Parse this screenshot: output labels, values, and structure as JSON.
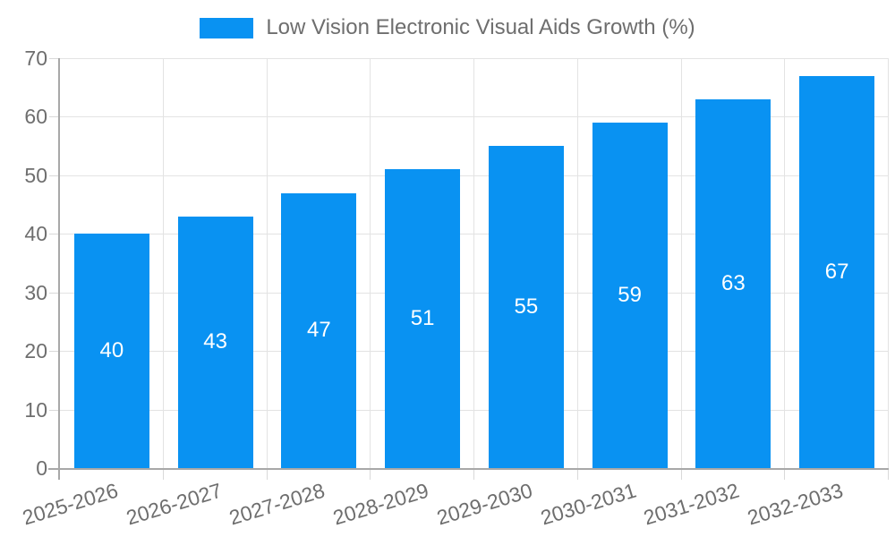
{
  "chart_data": {
    "type": "bar",
    "title": "Low Vision Electronic Visual Aids Growth (%)",
    "legend": {
      "label": "Low Vision Electronic Visual Aids Growth (%)",
      "position": "top-center"
    },
    "categories": [
      "2025-2026",
      "2026-2027",
      "2027-2028",
      "2028-2029",
      "2029-2030",
      "2030-2031",
      "2031-2032",
      "2032-2033"
    ],
    "values": [
      40,
      43,
      47,
      51,
      55,
      59,
      63,
      67
    ],
    "xlabel": "",
    "ylabel": "",
    "ylim": [
      0,
      70
    ],
    "yticks": [
      0,
      10,
      20,
      30,
      40,
      50,
      60,
      70
    ],
    "grid": true,
    "value_labels": {
      "visible": true,
      "placement": "center-of-bar"
    },
    "colors": {
      "bar": "#0992f2",
      "grid_line": "#e3e3e3",
      "axis_line": "#a8a8a8",
      "tick_line": "#d9d9d9",
      "axis_text": "#6e6e6e",
      "value_label": "#ffffff",
      "background": "#ffffff"
    }
  }
}
